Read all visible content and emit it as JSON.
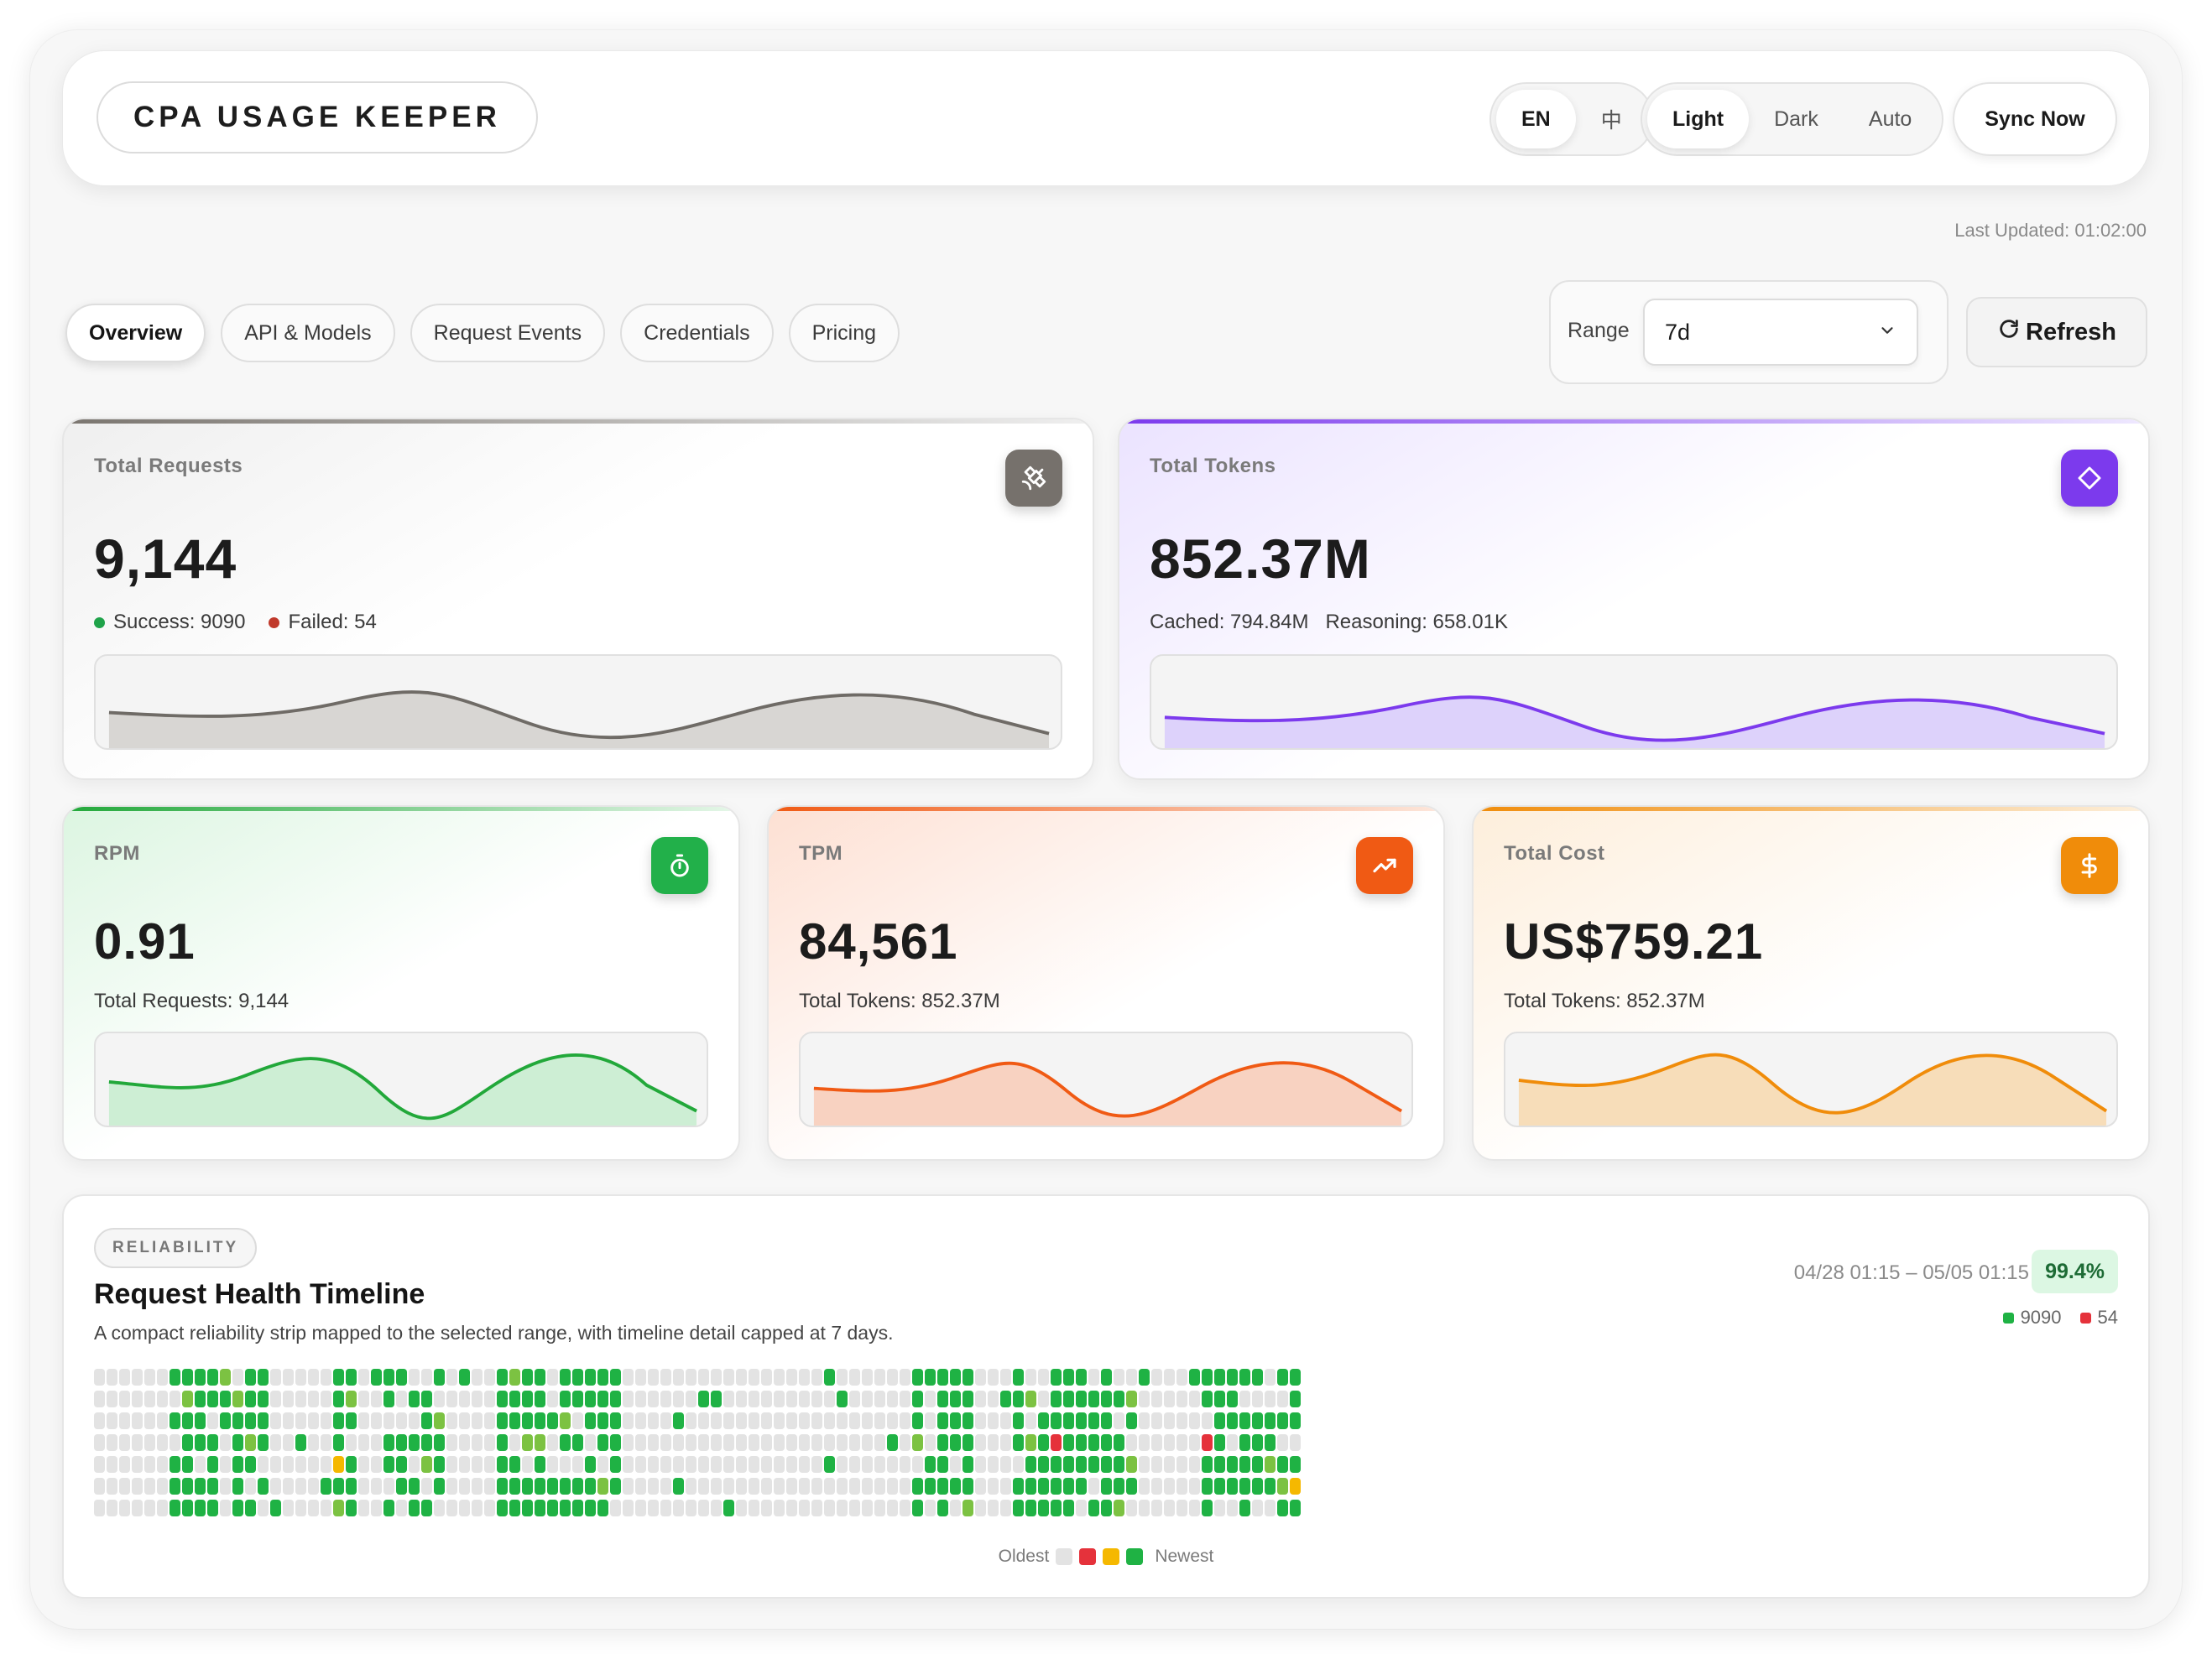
{
  "app": {
    "title": "CPA USAGE KEEPER"
  },
  "header": {
    "languages": [
      "EN",
      "中"
    ],
    "active_language": "EN",
    "themes": [
      "Light",
      "Dark",
      "Auto"
    ],
    "active_theme": "Light",
    "sync_label": "Sync Now",
    "last_updated": "Last Updated: 01:02:00"
  },
  "tabs": [
    "Overview",
    "API & Models",
    "Request Events",
    "Credentials",
    "Pricing"
  ],
  "active_tab": "Overview",
  "range": {
    "label": "Range",
    "value": "7d"
  },
  "refresh_label": "Refresh",
  "cards": {
    "requests": {
      "label": "Total Requests",
      "value": "9,144",
      "success": "Success: 9090",
      "failed": "Failed: 54",
      "color": "#6f6b66",
      "icon": "satellite-icon"
    },
    "tokens": {
      "label": "Total Tokens",
      "value": "852.37M",
      "cached": "Cached: 794.84M",
      "reasoning": "Reasoning: 658.01K",
      "color": "#7c3aed",
      "icon": "diamond-icon"
    },
    "rpm": {
      "label": "RPM",
      "value": "0.91",
      "sub": "Total Requests: 9,144",
      "color": "#22a83a",
      "icon": "stopwatch-icon"
    },
    "tpm": {
      "label": "TPM",
      "value": "84,561",
      "sub": "Total Tokens: 852.37M",
      "color": "#f05a14",
      "icon": "trending-up-icon"
    },
    "cost": {
      "label": "Total Cost",
      "value": "US$759.21",
      "sub": "Total Tokens: 852.37M",
      "color": "#f08c0a",
      "icon": "dollar-icon"
    }
  },
  "reliability": {
    "badge": "RELIABILITY",
    "title": "Request Health Timeline",
    "description": "A compact reliability strip mapped to the selected range, with timeline detail capped at 7 days.",
    "range": "04/28 01:15 – 05/05 01:15",
    "percent": "99.4%",
    "success_count": "9090",
    "failed_count": "54",
    "legend_oldest": "Oldest",
    "legend_newest": "Newest",
    "colors": {
      "success": "#1fb244",
      "partial": "#7cc242",
      "warning": "#f5b800",
      "failed": "#e5323b",
      "empty": "#e3e3e3"
    }
  }
}
